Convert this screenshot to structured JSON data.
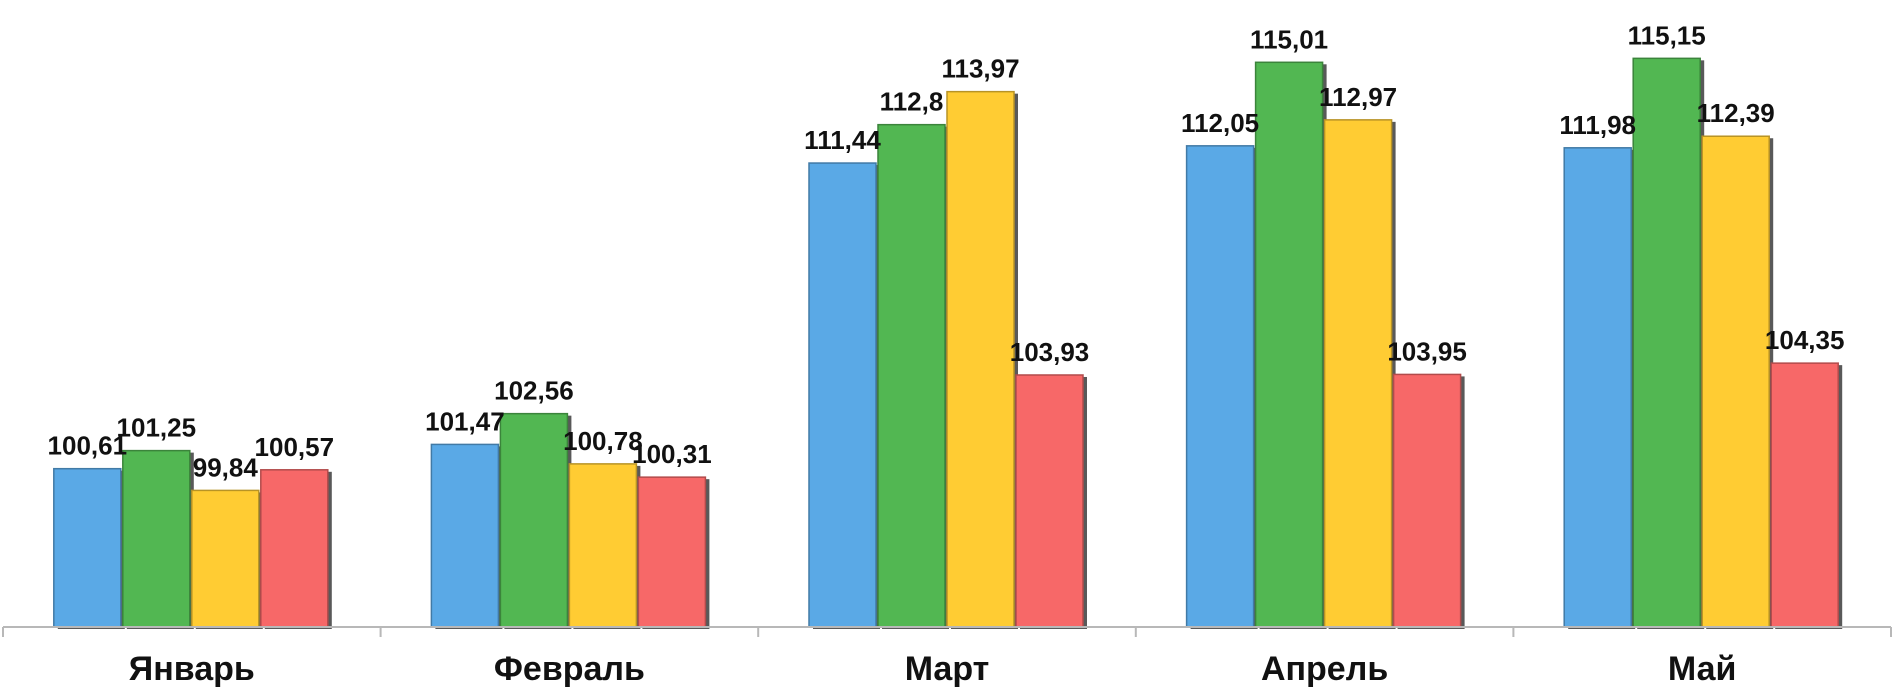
{
  "chart_data": {
    "type": "bar",
    "categories": [
      "Январь",
      "Февраль",
      "Март",
      "Апрель",
      "Май"
    ],
    "series": [
      {
        "values": [
          100.61,
          101.47,
          111.44,
          112.05,
          111.98
        ],
        "labels": [
          "100,61",
          "101,47",
          "111,44",
          "112,05",
          "111,98"
        ],
        "color": "#5aa9e6"
      },
      {
        "values": [
          101.25,
          102.56,
          112.8,
          115.01,
          115.15
        ],
        "labels": [
          "101,25",
          "102,56",
          "112,8",
          "115,01",
          "115,15"
        ],
        "color": "#52b752"
      },
      {
        "values": [
          99.84,
          100.78,
          113.97,
          112.97,
          112.39
        ],
        "labels": [
          "99,84",
          "100,78",
          "113,97",
          "112,97",
          "112,39"
        ],
        "color": "#ffcc33"
      },
      {
        "values": [
          100.57,
          100.31,
          103.93,
          103.95,
          104.35
        ],
        "labels": [
          "100,57",
          "100,31",
          "103,93",
          "103,95",
          "104,35"
        ],
        "color": "#f76868"
      }
    ],
    "ylim": [
      95.0,
      115.8
    ],
    "grid": false,
    "legend": "none"
  }
}
